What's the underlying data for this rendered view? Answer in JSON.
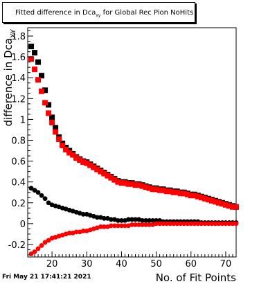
{
  "title": {
    "prefix": "Fitted difference in Dca",
    "subscript": "xy",
    "suffix": " for Global Rec Pion NoHits"
  },
  "timestamp": "Fri May 21 17:41:21 2021",
  "chart_data": {
    "type": "scatter",
    "title": "Fitted difference in Dca_xy for Global Rec Pion NoHits",
    "xlabel": "No. of Fit Points",
    "ylabel": "difference in Dca_XY",
    "xlim": [
      13,
      73
    ],
    "ylim": [
      -0.32,
      1.88
    ],
    "xticks": [
      20,
      30,
      40,
      50,
      60,
      70
    ],
    "yticks": [
      -0.2,
      0,
      0.2,
      0.4,
      0.6,
      0.8,
      1,
      1.2,
      1.4,
      1.6,
      1.8
    ],
    "grid": false,
    "legend": "none",
    "series": [
      {
        "color": "#000000",
        "marker": "square",
        "x": [
          14,
          15,
          16,
          17,
          18,
          19,
          20,
          21,
          22,
          23,
          24,
          25,
          26,
          27,
          28,
          29,
          30,
          31,
          32,
          33,
          34,
          35,
          36,
          37,
          38,
          39,
          40,
          41,
          42,
          43,
          44,
          45,
          46,
          47,
          48,
          49,
          50,
          51,
          52,
          53,
          54,
          55,
          56,
          57,
          58,
          59,
          60,
          61,
          62,
          63,
          64,
          65,
          66,
          67,
          68,
          69,
          70,
          71,
          72,
          73
        ],
        "y": [
          1.7,
          1.64,
          1.55,
          1.42,
          1.28,
          1.14,
          1.02,
          0.92,
          0.83,
          0.77,
          0.73,
          0.7,
          0.67,
          0.64,
          0.62,
          0.6,
          0.59,
          0.57,
          0.55,
          0.53,
          0.51,
          0.49,
          0.47,
          0.45,
          0.43,
          0.41,
          0.4,
          0.4,
          0.39,
          0.39,
          0.38,
          0.38,
          0.37,
          0.36,
          0.35,
          0.34,
          0.34,
          0.33,
          0.33,
          0.32,
          0.32,
          0.31,
          0.31,
          0.3,
          0.3,
          0.29,
          0.28,
          0.28,
          0.27,
          0.26,
          0.25,
          0.24,
          0.23,
          0.22,
          0.21,
          0.2,
          0.19,
          0.18,
          0.17,
          0.16
        ]
      },
      {
        "color": "#ff0000",
        "marker": "square",
        "x": [
          14,
          15,
          16,
          17,
          18,
          19,
          20,
          21,
          22,
          23,
          24,
          25,
          26,
          27,
          28,
          29,
          30,
          31,
          32,
          33,
          34,
          35,
          36,
          37,
          38,
          39,
          40,
          41,
          42,
          43,
          44,
          45,
          46,
          47,
          48,
          49,
          50,
          51,
          52,
          53,
          54,
          55,
          56,
          57,
          58,
          59,
          60,
          61,
          62,
          63,
          64,
          65,
          66,
          67,
          68,
          69,
          70,
          71,
          72,
          73
        ],
        "y": [
          1.58,
          1.48,
          1.38,
          1.27,
          1.16,
          1.06,
          0.97,
          0.88,
          0.81,
          0.75,
          0.71,
          0.68,
          0.66,
          0.63,
          0.61,
          0.59,
          0.58,
          0.56,
          0.54,
          0.52,
          0.5,
          0.48,
          0.46,
          0.44,
          0.42,
          0.4,
          0.39,
          0.39,
          0.38,
          0.38,
          0.37,
          0.37,
          0.36,
          0.35,
          0.34,
          0.33,
          0.33,
          0.32,
          0.32,
          0.31,
          0.31,
          0.3,
          0.3,
          0.29,
          0.29,
          0.28,
          0.27,
          0.27,
          0.26,
          0.25,
          0.24,
          0.23,
          0.22,
          0.21,
          0.2,
          0.19,
          0.18,
          0.17,
          0.16,
          0.16
        ]
      },
      {
        "color": "#000000",
        "marker": "circle",
        "x": [
          14,
          15,
          16,
          17,
          18,
          19,
          20,
          21,
          22,
          23,
          24,
          25,
          26,
          27,
          28,
          29,
          30,
          31,
          32,
          33,
          34,
          35,
          36,
          37,
          38,
          39,
          40,
          41,
          42,
          43,
          44,
          45,
          46,
          47,
          48,
          49,
          50,
          51,
          52,
          53,
          54,
          55,
          56,
          57,
          58,
          59,
          60,
          61,
          62,
          63,
          64,
          65,
          66,
          67,
          68,
          69,
          70,
          71,
          72,
          73
        ],
        "y": [
          0.34,
          0.32,
          0.3,
          0.27,
          0.24,
          0.2,
          0.18,
          0.17,
          0.16,
          0.15,
          0.14,
          0.13,
          0.12,
          0.11,
          0.1,
          0.09,
          0.09,
          0.08,
          0.07,
          0.06,
          0.06,
          0.05,
          0.05,
          0.04,
          0.04,
          0.03,
          0.03,
          0.03,
          0.04,
          0.04,
          0.04,
          0.04,
          0.03,
          0.03,
          0.03,
          0.03,
          0.03,
          0.03,
          0.02,
          0.02,
          0.02,
          0.02,
          0.02,
          0.02,
          0.02,
          0.02,
          0.02,
          0.02,
          0.02,
          0.01,
          0.01,
          0.01,
          0.01,
          0.01,
          0.01,
          0.01,
          0.01,
          0.01,
          0.01,
          0.01
        ]
      },
      {
        "color": "#ff0000",
        "marker": "circle",
        "x": [
          14,
          15,
          16,
          17,
          18,
          19,
          20,
          21,
          22,
          23,
          24,
          25,
          26,
          27,
          28,
          29,
          30,
          31,
          32,
          33,
          34,
          35,
          36,
          37,
          38,
          39,
          40,
          41,
          42,
          43,
          44,
          45,
          46,
          47,
          48,
          49,
          50,
          51,
          52,
          53,
          54,
          55,
          56,
          57,
          58,
          59,
          60,
          61,
          62,
          63,
          64,
          65,
          66,
          67,
          68,
          69,
          70,
          71,
          72,
          73
        ],
        "y": [
          -0.29,
          -0.27,
          -0.24,
          -0.21,
          -0.18,
          -0.16,
          -0.14,
          -0.13,
          -0.12,
          -0.11,
          -0.1,
          -0.09,
          -0.09,
          -0.08,
          -0.08,
          -0.07,
          -0.07,
          -0.06,
          -0.05,
          -0.04,
          -0.03,
          -0.03,
          -0.03,
          -0.02,
          -0.02,
          -0.02,
          -0.02,
          -0.02,
          -0.02,
          -0.01,
          -0.01,
          -0.01,
          -0.01,
          -0.01,
          -0.01,
          -0.01,
          0.0,
          0.0,
          0.0,
          0.0,
          0.0,
          0.0,
          0.0,
          0.0,
          0.0,
          0.0,
          0.0,
          0.0,
          0.0,
          0.0,
          0.0,
          0.0,
          0.0,
          0.0,
          0.0,
          0.0,
          0.0,
          0.0,
          0.0,
          0.0
        ]
      }
    ]
  }
}
